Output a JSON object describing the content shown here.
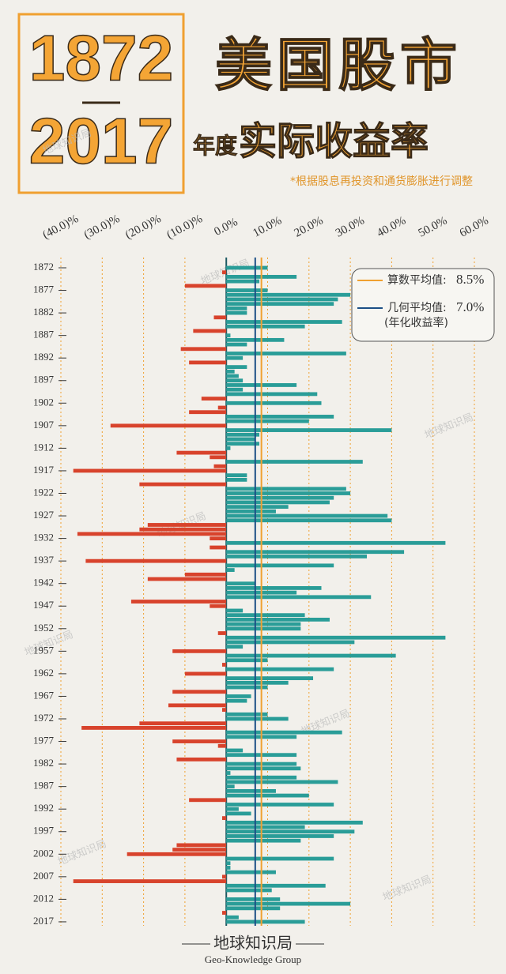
{
  "chart_data": {
    "type": "bar",
    "period": [
      "1872",
      "2017"
    ],
    "title": "美国股市",
    "subtitle_small": "年度",
    "subtitle_big": "实际收益率",
    "note": "*根据股息再投资和通货膨胀进行调整",
    "categories": [
      "1872",
      null,
      null,
      null,
      null,
      "1877",
      null,
      null,
      null,
      null,
      "1882",
      null,
      null,
      null,
      null,
      "1887",
      null,
      null,
      null,
      null,
      "1892",
      null,
      null,
      null,
      null,
      "1897",
      null,
      null,
      null,
      null,
      "1902",
      null,
      null,
      null,
      null,
      "1907",
      null,
      null,
      null,
      null,
      "1912",
      null,
      null,
      null,
      null,
      "1917",
      null,
      null,
      null,
      null,
      "1922",
      null,
      null,
      null,
      null,
      "1927",
      null,
      null,
      null,
      null,
      "1932",
      null,
      null,
      null,
      null,
      "1937",
      null,
      null,
      null,
      null,
      "1942",
      null,
      null,
      null,
      null,
      "1947",
      null,
      null,
      null,
      null,
      "1952",
      null,
      null,
      null,
      null,
      "1957",
      null,
      null,
      null,
      null,
      "1962",
      null,
      null,
      null,
      null,
      "1967",
      null,
      null,
      null,
      null,
      "1972",
      null,
      null,
      null,
      null,
      "1977",
      null,
      null,
      null,
      null,
      "1982",
      null,
      null,
      null,
      null,
      "1987",
      null,
      null,
      null,
      null,
      "1992",
      null,
      null,
      null,
      null,
      "1997",
      null,
      null,
      null,
      null,
      "2002",
      null,
      null,
      null,
      null,
      "2007",
      null,
      null,
      null,
      null,
      "2012",
      null,
      null,
      null,
      null,
      "2017"
    ],
    "values": [
      10,
      -1,
      17,
      8,
      -10,
      10,
      30,
      27,
      26,
      5,
      5,
      -3,
      28,
      19,
      -8,
      1,
      14,
      5,
      -11,
      29,
      4,
      -9,
      5,
      2,
      3,
      4,
      17,
      4,
      22,
      -6,
      23,
      -2,
      -9,
      26,
      20,
      -28,
      40,
      8,
      7,
      8,
      1,
      -12,
      -4,
      33,
      -3,
      -37,
      5,
      5,
      -21,
      29,
      30,
      26,
      25,
      15,
      12,
      39,
      40,
      -19,
      -21,
      -36,
      -4,
      53,
      -4,
      43,
      34,
      -34,
      26,
      2,
      -10,
      -19,
      7,
      23,
      17,
      35,
      -23,
      -4,
      4,
      19,
      25,
      18,
      18,
      -2,
      53,
      31,
      4,
      -13,
      41,
      10,
      -1,
      26,
      -10,
      21,
      15,
      10,
      -13,
      6,
      5,
      -14,
      -1,
      10,
      15,
      -21,
      -35,
      28,
      17,
      -13,
      -2,
      4,
      17,
      -12,
      17,
      18,
      1,
      17,
      27,
      2,
      12,
      20,
      -9,
      26,
      3,
      6,
      -1,
      33,
      19,
      31,
      26,
      18,
      -12,
      -13,
      -24,
      26,
      1,
      1,
      12,
      -1,
      -37,
      24,
      11,
      0,
      13,
      30,
      13,
      -1,
      3,
      19
    ],
    "color_positive": "#2a9d98",
    "color_negative": "#d8432c",
    "xlim": [
      -40,
      60
    ],
    "xticks": [
      {
        "value": -40,
        "label": "(40.0)%"
      },
      {
        "value": -30,
        "label": "(30.0)%"
      },
      {
        "value": -20,
        "label": "(20.0)%"
      },
      {
        "value": -10,
        "label": "(10.0)%"
      },
      {
        "value": 0,
        "label": "0.0%"
      },
      {
        "value": 10,
        "label": "10.0%"
      },
      {
        "value": 20,
        "label": "20.0%"
      },
      {
        "value": 30,
        "label": "30.0%"
      },
      {
        "value": 40,
        "label": "40.0%"
      },
      {
        "value": 50,
        "label": "50.0%"
      },
      {
        "value": 60,
        "label": "60.0%"
      }
    ],
    "grid": true,
    "reference_lines": [
      {
        "label": "算数平均值:",
        "value": 8.5,
        "value_label": "8.5%",
        "color": "#f0a030"
      },
      {
        "label": "几何平均值:",
        "value": 7.0,
        "value_label": "7.0%",
        "note": "(年化收益率)",
        "color": "#1c4f86"
      }
    ],
    "legend": "top-right",
    "watermark": "地球知识局",
    "footer": "地球知识局",
    "footer_en": "Geo-Knowledge Group"
  }
}
